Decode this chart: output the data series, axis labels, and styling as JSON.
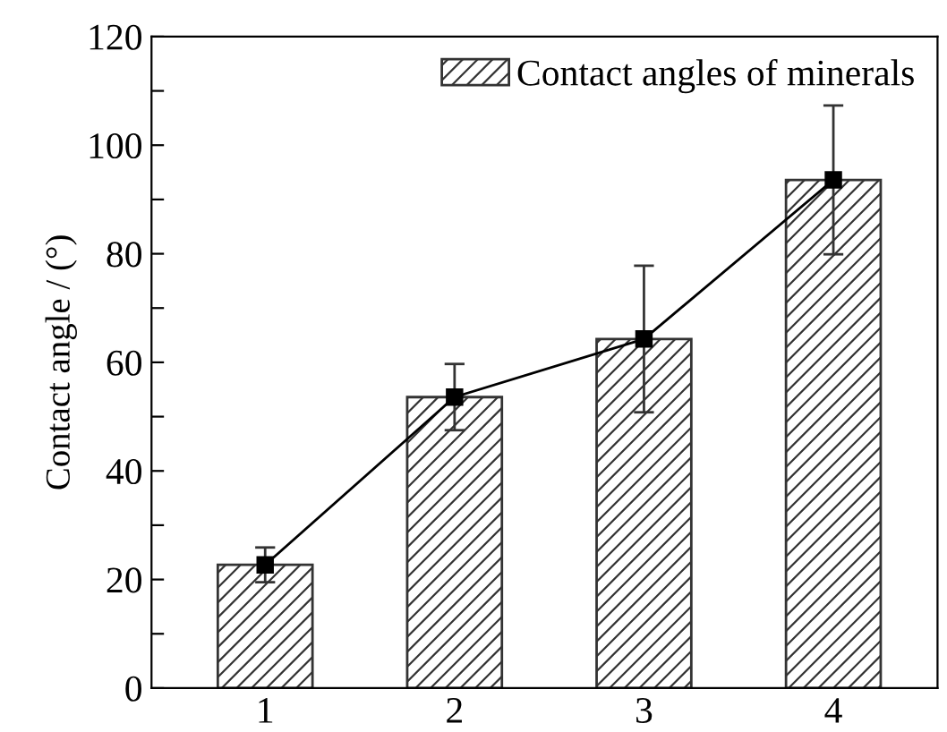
{
  "chart_data": {
    "type": "bar",
    "ylabel": "Contact angle / (°)",
    "categories": [
      "1",
      "2",
      "3",
      "4"
    ],
    "series": [
      {
        "name": "Contact angles of minerals",
        "color": "#333333",
        "values": [
          22.7,
          53.6,
          64.3,
          93.6
        ],
        "errors": [
          3.2,
          6.1,
          13.5,
          13.7
        ]
      },
      {
        "type": "line",
        "color": "#000000",
        "values": [
          22.7,
          53.6,
          64.3,
          93.6
        ],
        "marker": "square",
        "line_style": "solid"
      }
    ],
    "ylim": [
      0,
      120
    ],
    "yticks": [
      0,
      {
        "value": 10,
        "label": null
      },
      20,
      {
        "value": 30,
        "label": null
      },
      40,
      {
        "value": 50,
        "label": null
      },
      60,
      {
        "value": 70,
        "label": null
      },
      80,
      {
        "value": 90,
        "label": null
      },
      100,
      {
        "value": 110,
        "label": null
      },
      120
    ],
    "grid": false,
    "legend": "top right"
  }
}
